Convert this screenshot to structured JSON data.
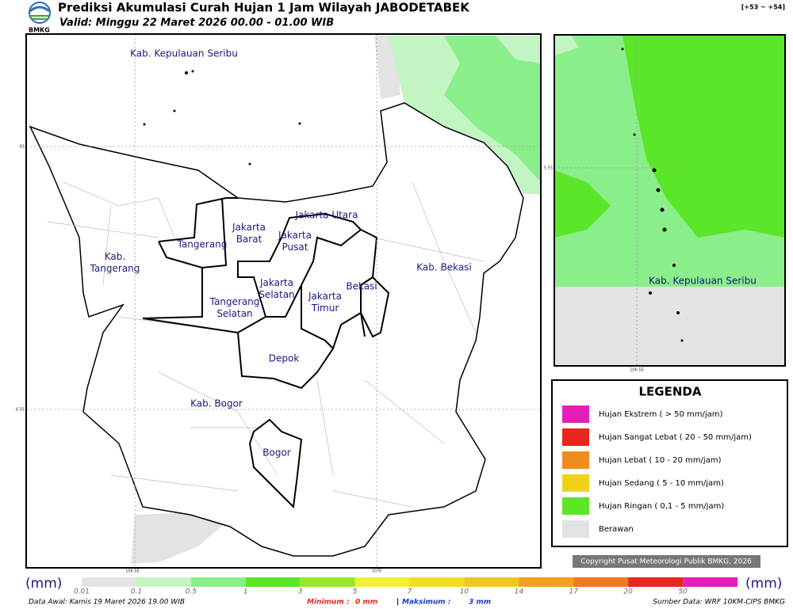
{
  "header": {
    "logo": "BMKG",
    "title": "Prediksi Akumulasi Curah Hujan 1 Jam Wilayah JABODETABEK",
    "subtitle": "Valid: Minggu 22 Maret 2026 00.00 - 01.00 WIB",
    "code": "[+53 ~ +54]"
  },
  "map": {
    "labels": [
      [
        "Kab. Kepulauan Seribu"
      ],
      [
        "Jakarta Utara"
      ],
      [
        "Jakarta",
        "Barat"
      ],
      [
        "Jakarta",
        "Pusat"
      ],
      [
        "Tangerang"
      ],
      [
        "Kab.",
        "Tangerang"
      ],
      [
        "Jakarta",
        "Selatan"
      ],
      [
        "Jakarta",
        "Timur"
      ],
      [
        "Bekasi"
      ],
      [
        "Kab. Bekasi"
      ],
      [
        "Tangerang",
        "Selatan"
      ],
      [
        "Depok"
      ],
      [
        "Kab. Bogor"
      ],
      [
        "Bogor"
      ]
    ],
    "lat_ticks": [
      "6S",
      "6.5S"
    ],
    "lon_ticks": [
      "106.5E",
      "107E"
    ]
  },
  "inset": {
    "label": "Kab. Kepulauan Seribu",
    "lat_tick": "5.5S",
    "lon_tick": "106.5E"
  },
  "legend": {
    "title": "LEGENDA",
    "items": [
      {
        "label": "Hujan Ekstrem ( > 50 mm/jam)",
        "color": "#e41fb8"
      },
      {
        "label": "Hujan Sangat Lebat ( 20 - 50 mm/jam)",
        "color": "#e8261c"
      },
      {
        "label": "Hujan Lebat ( 10 - 20 mm/jam)",
        "color": "#ef8c1e"
      },
      {
        "label": "Hujan Sedang ( 5 - 10 mm/jam)",
        "color": "#eed21a"
      },
      {
        "label": "Hujan Ringan ( 0,1 - 5 mm/jam)",
        "color": "#5ce62a"
      },
      {
        "label": "Berawan",
        "color": "#e3e3e3"
      }
    ]
  },
  "copyright": "Copyright Pusat Meteorologi Publik BMKG, 2026",
  "colorbar": {
    "unit": "(mm)",
    "ticks": [
      0.01,
      0.1,
      0.5,
      1,
      3,
      5,
      7,
      10,
      14,
      17,
      20,
      50
    ],
    "colors": [
      "#e3e3e3",
      "#c2f5c2",
      "#8aee8a",
      "#5ce62a",
      "#98e62a",
      "#f0f030",
      "#f0e020",
      "#f0c820",
      "#f0a020",
      "#f07a20",
      "#e8261c",
      "#e41fb8"
    ]
  },
  "footer": {
    "start": "Data Awal: Kamis 19 Maret 2026 19.00 WIB",
    "min_label": "Minimum :",
    "min_value": "0 mm",
    "separator": "|",
    "max_label": "Maksimum :",
    "max_value": "3 mm",
    "source": "Sumber Data: WRF 10KM-CIPS BMKG"
  }
}
